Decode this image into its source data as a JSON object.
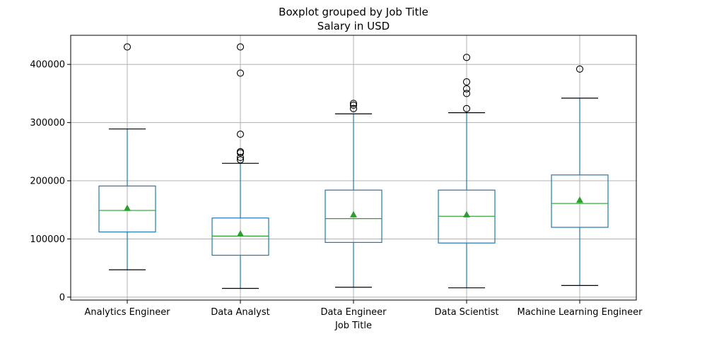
{
  "chart_data": {
    "type": "box",
    "title": "Boxplot grouped by Job Title",
    "subtitle": "Salary in USD",
    "xlabel": "Job Title",
    "ylabel": "",
    "ylim": [
      -5000,
      450000
    ],
    "yticks": [
      0,
      100000,
      200000,
      300000,
      400000
    ],
    "ytick_labels": [
      "0",
      "100000",
      "200000",
      "300000",
      "400000"
    ],
    "grid": true,
    "colors": {
      "box": "#1f77b4",
      "median": "#2ca02c",
      "mean": "#2ca02c",
      "whisker_cap": "#000000",
      "flier": "#000000",
      "grid": "#b0b0b0"
    },
    "categories": [
      "Analytics Engineer",
      "Data Analyst",
      "Data Engineer",
      "Data Scientist",
      "Machine Learning Engineer"
    ],
    "boxes": [
      {
        "category": "Analytics Engineer",
        "whislo": 47000,
        "q1": 112000,
        "median": 149000,
        "mean": 153000,
        "q3": 191000,
        "whishi": 289000,
        "fliers": [
          430000
        ]
      },
      {
        "category": "Data Analyst",
        "whislo": 15000,
        "q1": 72000,
        "median": 105000,
        "mean": 109000,
        "q3": 136000,
        "whishi": 230000,
        "fliers": [
          430000,
          385000,
          280000,
          250000,
          248000,
          240000,
          236000
        ]
      },
      {
        "category": "Data Engineer",
        "whislo": 17000,
        "q1": 94000,
        "median": 135000,
        "mean": 142000,
        "q3": 184000,
        "whishi": 315000,
        "fliers": [
          333000,
          330000,
          324000
        ]
      },
      {
        "category": "Data Scientist",
        "whislo": 16000,
        "q1": 93000,
        "median": 139000,
        "mean": 142000,
        "q3": 184000,
        "whishi": 317000,
        "fliers": [
          412000,
          370000,
          358000,
          350000,
          324000
        ]
      },
      {
        "category": "Machine Learning Engineer",
        "whislo": 20000,
        "q1": 120000,
        "median": 161000,
        "mean": 167000,
        "q3": 210000,
        "whishi": 342000,
        "fliers": [
          392000
        ]
      }
    ]
  }
}
